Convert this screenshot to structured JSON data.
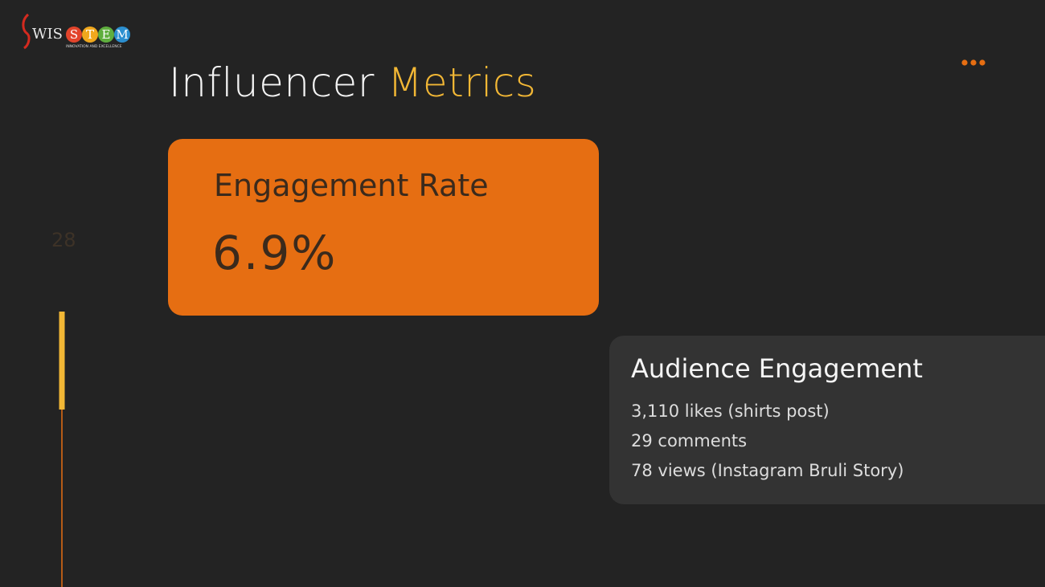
{
  "logo": {
    "name": "WIS",
    "letters": [
      "S",
      "T",
      "E",
      "M"
    ],
    "tagline": "INNOVATION AND EXCELLENCE"
  },
  "header": {
    "title_part1": "Influencer",
    "title_part2": "Metrics"
  },
  "page_number": "28",
  "metric_card": {
    "label": "Engagement Rate",
    "value": "6.9%"
  },
  "audience_card": {
    "heading": "Audience Engagement",
    "items": [
      "3,110 likes (shirts post)",
      "29 comments",
      "78 views (Instagram Bruli Story)"
    ]
  }
}
